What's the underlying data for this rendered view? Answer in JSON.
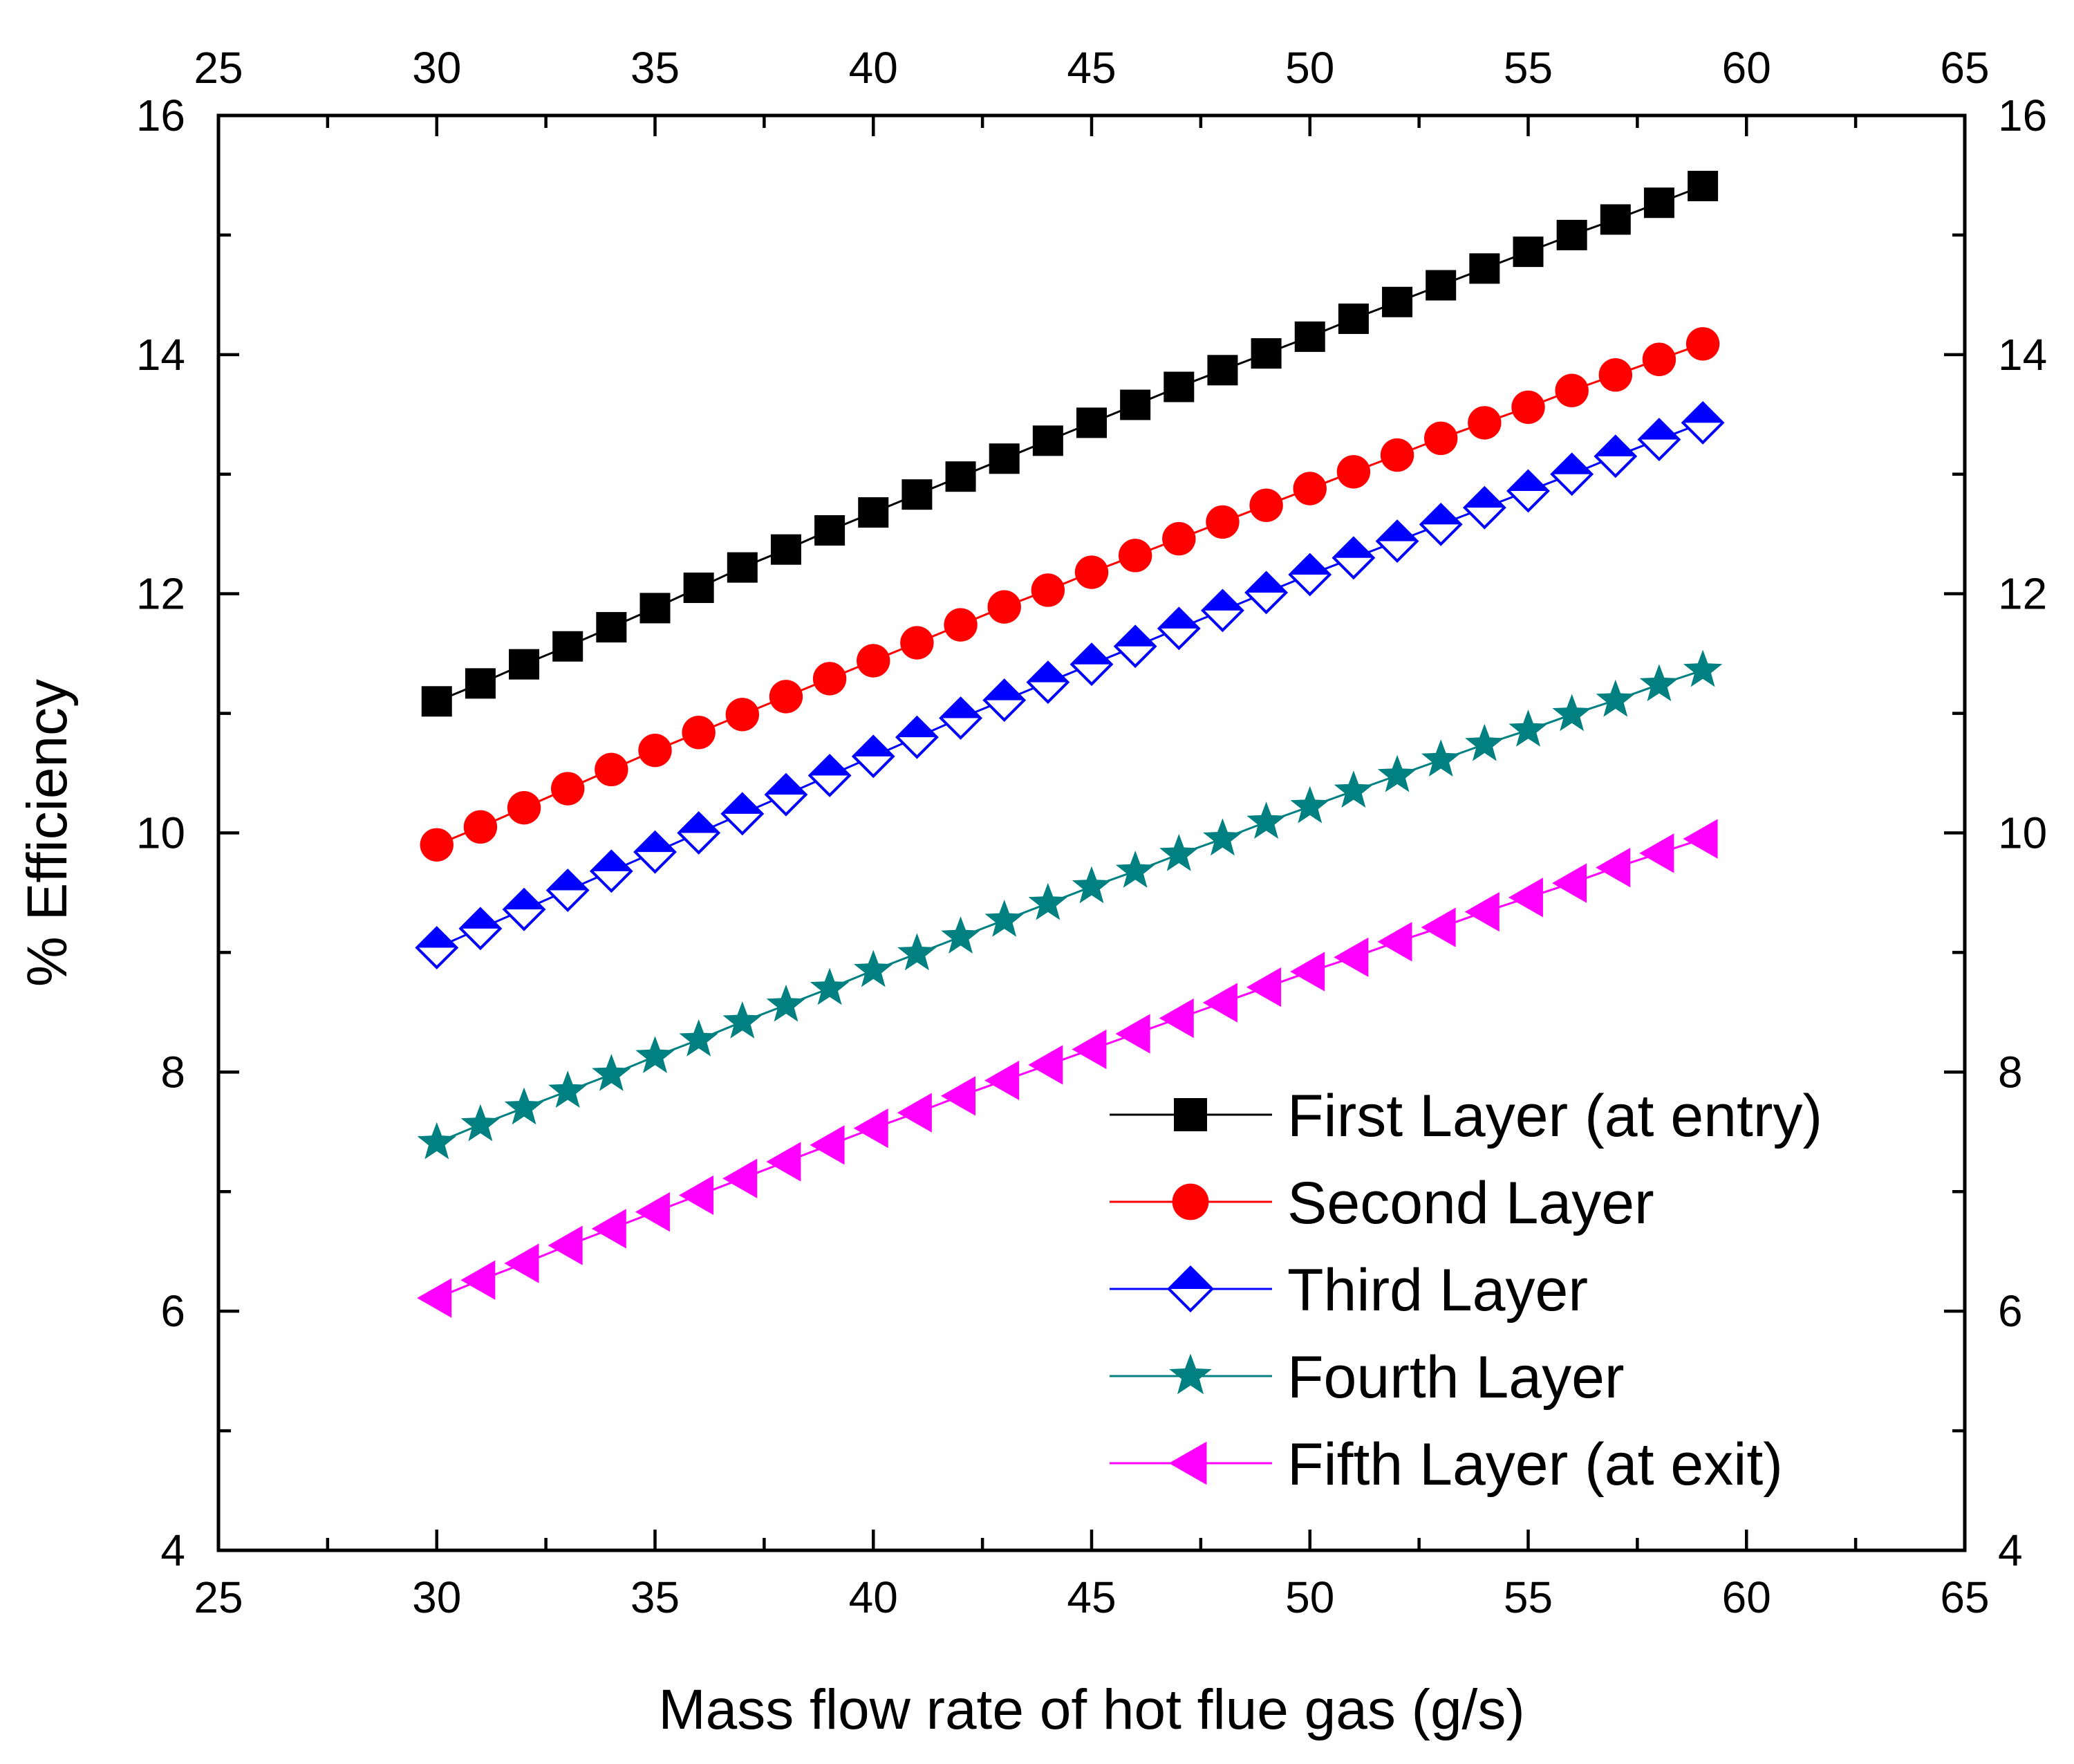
{
  "chart_data": {
    "type": "line",
    "title": "",
    "xlabel": "Mass flow rate of hot flue gas (g/s)",
    "ylabel": "% Efficiency",
    "xlim": [
      25,
      65
    ],
    "ylim": [
      4,
      16
    ],
    "x_ticks": [
      25,
      30,
      35,
      40,
      45,
      50,
      55,
      60,
      65
    ],
    "y_ticks": [
      4,
      6,
      8,
      10,
      12,
      14,
      16
    ],
    "mirror_axes": true,
    "grid": false,
    "legend_position": "bottom-right",
    "x": [
      30,
      31,
      32,
      33,
      34,
      35,
      36,
      37,
      38,
      39,
      40,
      41,
      42,
      43,
      44,
      45,
      46,
      47,
      48,
      49,
      50,
      51,
      52,
      53,
      54,
      55,
      56,
      57,
      58,
      59
    ],
    "series": [
      {
        "name": "First Layer (at entry)",
        "color": "#000000",
        "marker": "square",
        "values": [
          11.1,
          11.25,
          11.41,
          11.56,
          11.72,
          11.88,
          12.05,
          12.22,
          12.37,
          12.53,
          12.68,
          12.83,
          12.98,
          13.13,
          13.28,
          13.43,
          13.58,
          13.73,
          13.87,
          14.01,
          14.15,
          14.3,
          14.44,
          14.58,
          14.72,
          14.86,
          15.0,
          15.13,
          15.27,
          15.41
        ]
      },
      {
        "name": "Second Layer",
        "color": "#ff0000",
        "marker": "circle",
        "values": [
          9.9,
          10.05,
          10.21,
          10.37,
          10.53,
          10.69,
          10.84,
          10.99,
          11.14,
          11.29,
          11.44,
          11.59,
          11.74,
          11.89,
          12.03,
          12.18,
          12.32,
          12.46,
          12.6,
          12.74,
          12.88,
          13.02,
          13.16,
          13.3,
          13.43,
          13.56,
          13.7,
          13.83,
          13.96,
          14.09
        ]
      },
      {
        "name": "Third Layer",
        "color": "#0000ff",
        "marker": "diamond-half",
        "values": [
          9.04,
          9.2,
          9.36,
          9.52,
          9.68,
          9.84,
          10.0,
          10.16,
          10.32,
          10.48,
          10.64,
          10.8,
          10.96,
          11.11,
          11.26,
          11.41,
          11.56,
          11.71,
          11.86,
          12.01,
          12.16,
          12.3,
          12.44,
          12.58,
          12.72,
          12.86,
          13.0,
          13.15,
          13.29,
          13.43
        ]
      },
      {
        "name": "Fourth Layer",
        "color": "#008080",
        "marker": "star",
        "values": [
          7.41,
          7.56,
          7.7,
          7.84,
          7.98,
          8.13,
          8.27,
          8.42,
          8.56,
          8.7,
          8.85,
          8.99,
          9.13,
          9.27,
          9.41,
          9.55,
          9.68,
          9.82,
          9.95,
          10.09,
          10.22,
          10.35,
          10.48,
          10.61,
          10.74,
          10.86,
          10.99,
          11.11,
          11.24,
          11.36
        ]
      },
      {
        "name": "Fifth Layer (at exit)",
        "color": "#ff00ff",
        "marker": "triangle-left",
        "values": [
          6.11,
          6.26,
          6.4,
          6.55,
          6.69,
          6.83,
          6.97,
          7.11,
          7.25,
          7.39,
          7.53,
          7.66,
          7.8,
          7.93,
          8.06,
          8.19,
          8.32,
          8.45,
          8.58,
          8.71,
          8.84,
          8.96,
          9.09,
          9.21,
          9.34,
          9.46,
          9.58,
          9.71,
          9.83,
          9.95
        ]
      }
    ]
  }
}
